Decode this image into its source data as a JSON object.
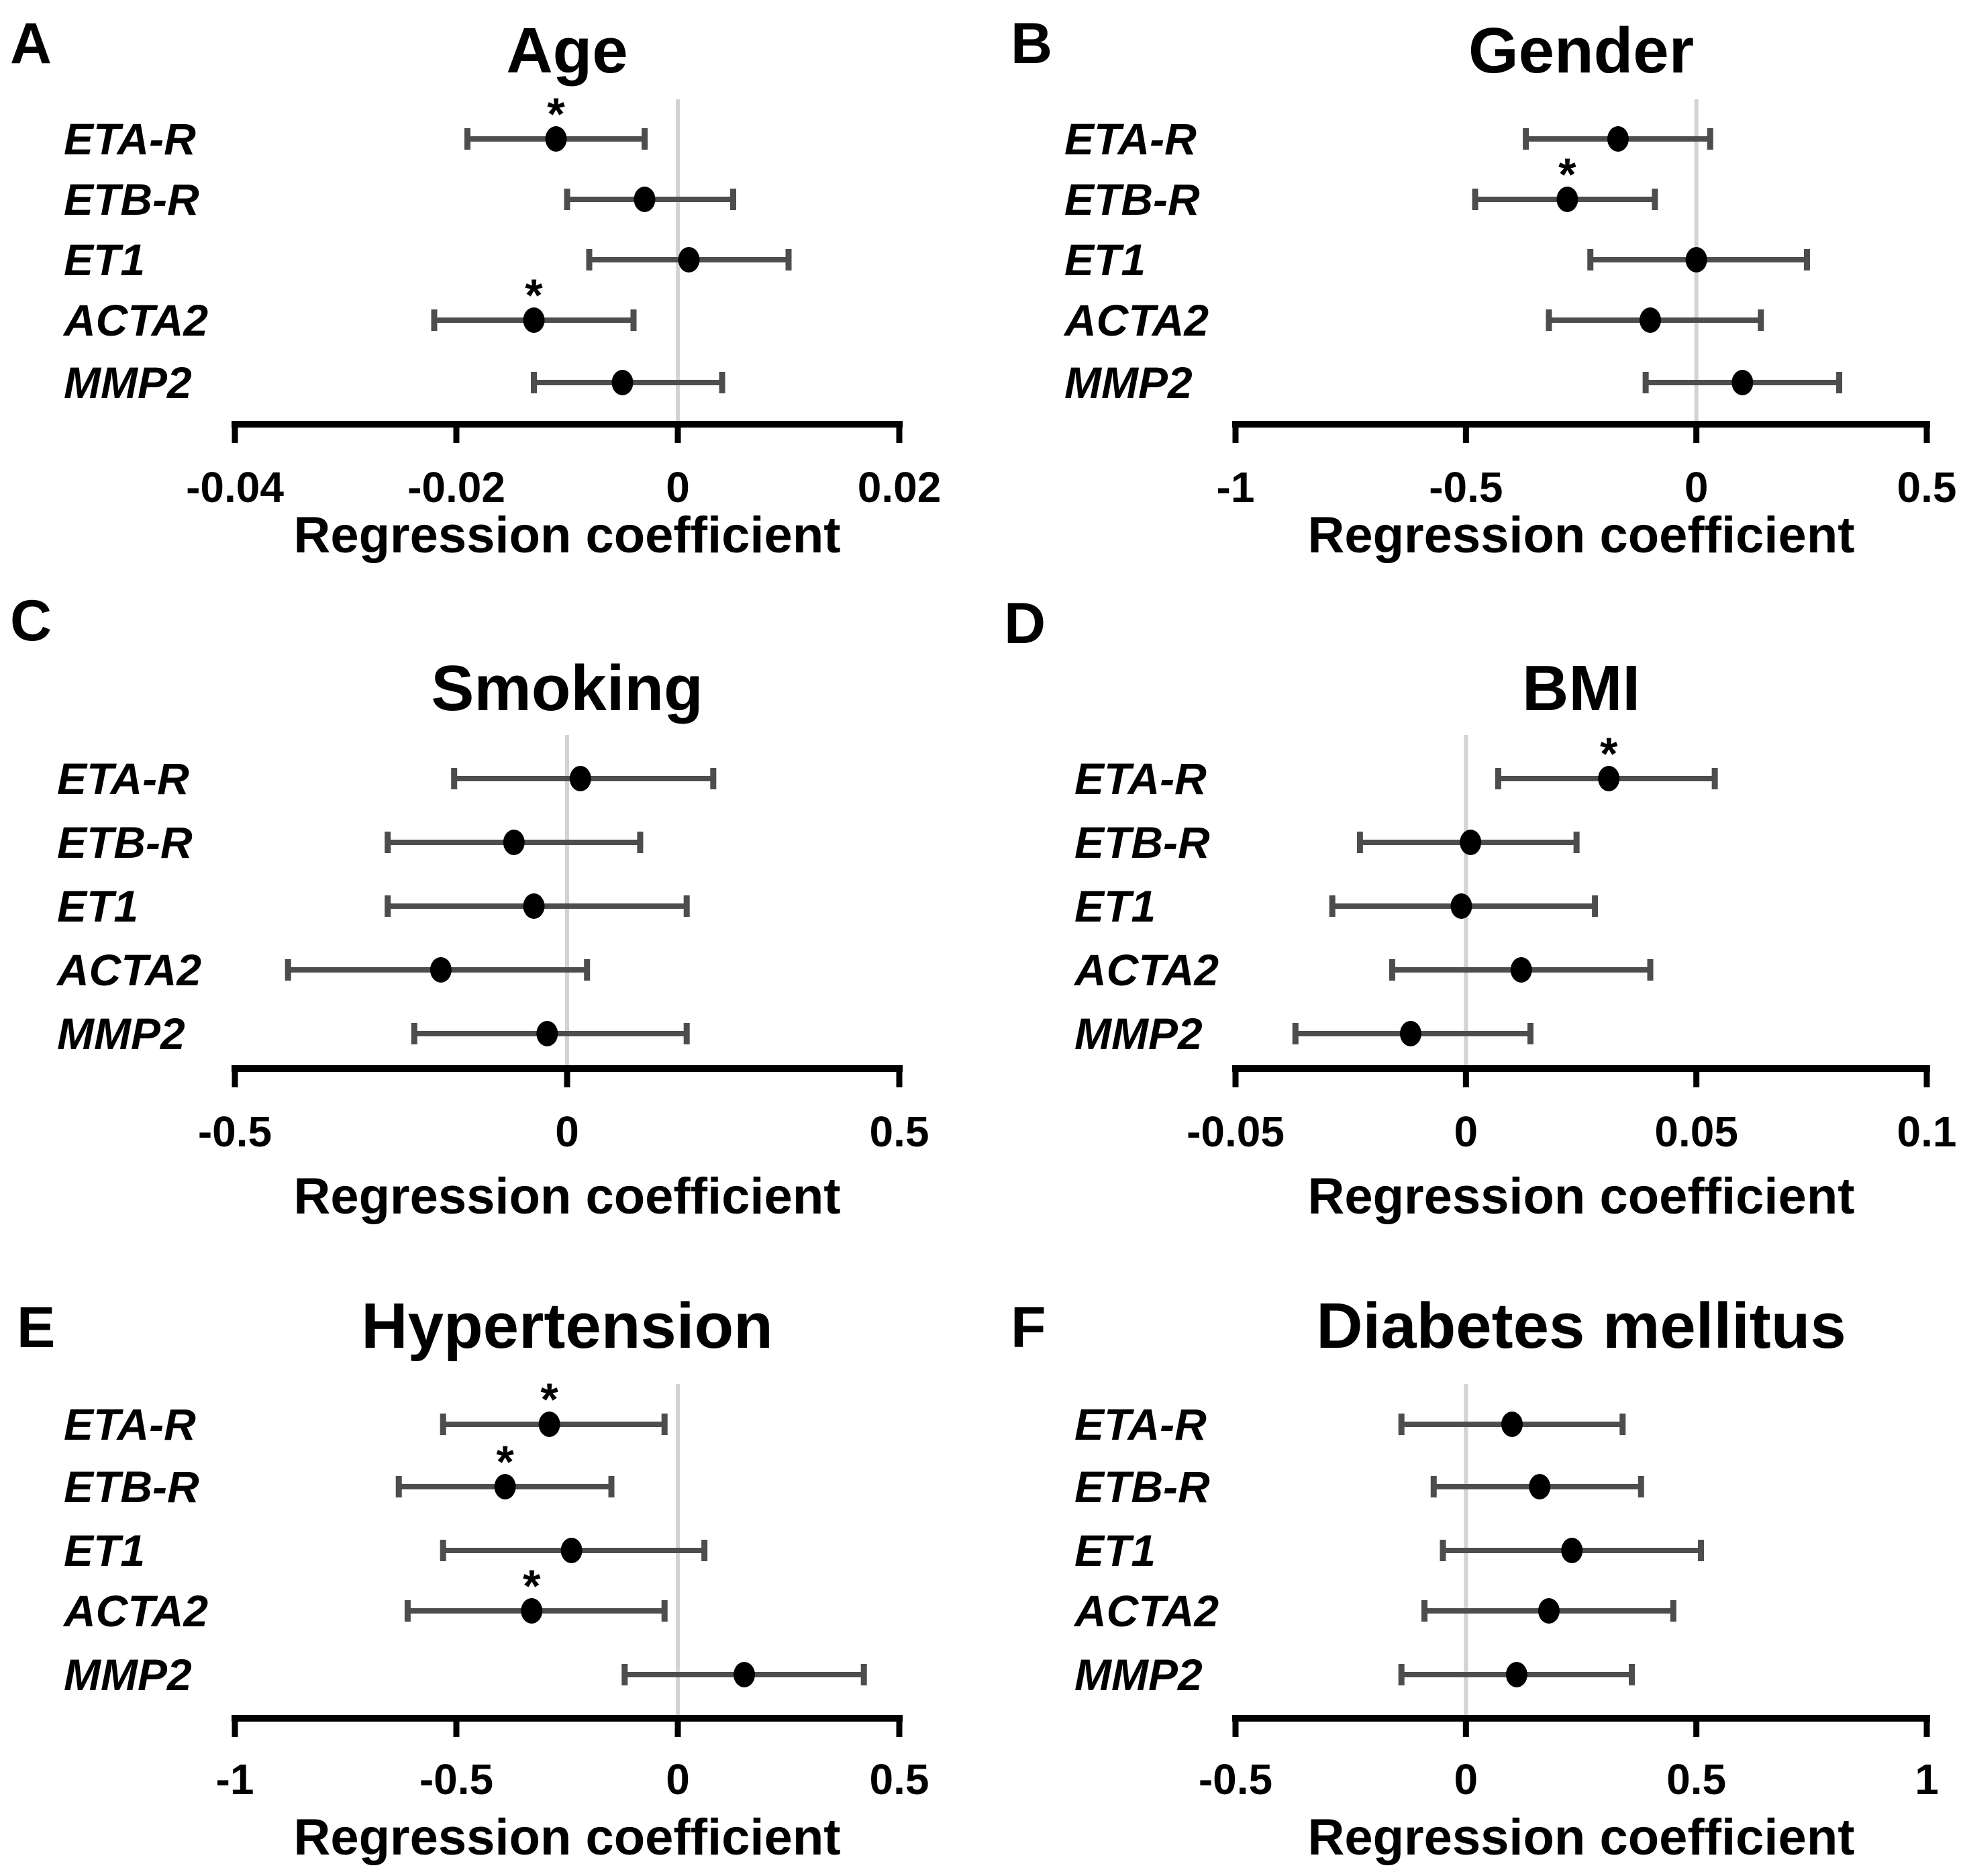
{
  "figure": {
    "genes": [
      "ETA-R",
      "ETB-R",
      "ET1",
      "ACTA2",
      "MMP2"
    ],
    "significance_marker": "*",
    "xlabel": "Regression coefficient"
  },
  "styles": {
    "marker_color": "#000000",
    "ci_color": "#4d4d4d",
    "zero_line_color": "#d3d3d3",
    "axis_color": "#000000",
    "text_color": "#000000"
  },
  "chart_data": [
    {
      "type": "forest",
      "panel_label": "A",
      "title": "Age",
      "xlabel": "Regression coefficient",
      "xlim": [
        -0.04,
        0.02
      ],
      "xticks": [
        -0.04,
        -0.02,
        0,
        0.02
      ],
      "xtick_labels": [
        "-0.04",
        "-0.02",
        "0",
        "0.02"
      ],
      "zero_reference": 0,
      "grid": false,
      "categories": [
        "ETA-R",
        "ETB-R",
        "ET1",
        "ACTA2",
        "MMP2"
      ],
      "points": [
        {
          "gene": "ETA-R",
          "estimate": -0.011,
          "ci_low": -0.019,
          "ci_high": -0.003,
          "significant": true
        },
        {
          "gene": "ETB-R",
          "estimate": -0.003,
          "ci_low": -0.01,
          "ci_high": 0.005,
          "significant": false
        },
        {
          "gene": "ET1",
          "estimate": 0.001,
          "ci_low": -0.008,
          "ci_high": 0.01,
          "significant": false
        },
        {
          "gene": "ACTA2",
          "estimate": -0.013,
          "ci_low": -0.022,
          "ci_high": -0.004,
          "significant": true
        },
        {
          "gene": "MMP2",
          "estimate": -0.005,
          "ci_low": -0.013,
          "ci_high": 0.004,
          "significant": false
        }
      ]
    },
    {
      "type": "forest",
      "panel_label": "B",
      "title": "Gender",
      "xlabel": "Regression coefficient",
      "xlim": [
        -1,
        0.5
      ],
      "xticks": [
        -1,
        -0.5,
        0,
        0.5
      ],
      "xtick_labels": [
        "-1",
        "-0.5",
        "0",
        "0.5"
      ],
      "zero_reference": 0,
      "grid": false,
      "categories": [
        "ETA-R",
        "ETB-R",
        "ET1",
        "ACTA2",
        "MMP2"
      ],
      "points": [
        {
          "gene": "ETA-R",
          "estimate": -0.17,
          "ci_low": -0.37,
          "ci_high": 0.03,
          "significant": false
        },
        {
          "gene": "ETB-R",
          "estimate": -0.28,
          "ci_low": -0.48,
          "ci_high": -0.09,
          "significant": true
        },
        {
          "gene": "ET1",
          "estimate": 0.0,
          "ci_low": -0.23,
          "ci_high": 0.24,
          "significant": false
        },
        {
          "gene": "ACTA2",
          "estimate": -0.1,
          "ci_low": -0.32,
          "ci_high": 0.14,
          "significant": false
        },
        {
          "gene": "MMP2",
          "estimate": 0.1,
          "ci_low": -0.11,
          "ci_high": 0.31,
          "significant": false
        }
      ]
    },
    {
      "type": "forest",
      "panel_label": "C",
      "title": "Smoking",
      "xlabel": "Regression coefficient",
      "xlim": [
        -0.5,
        0.5
      ],
      "xticks": [
        -0.5,
        0,
        0.5
      ],
      "xtick_labels": [
        "-0.5",
        "0",
        "0.5"
      ],
      "zero_reference": 0,
      "grid": false,
      "categories": [
        "ETA-R",
        "ETB-R",
        "ET1",
        "ACTA2",
        "MMP2"
      ],
      "points": [
        {
          "gene": "ETA-R",
          "estimate": 0.02,
          "ci_low": -0.17,
          "ci_high": 0.22,
          "significant": false
        },
        {
          "gene": "ETB-R",
          "estimate": -0.08,
          "ci_low": -0.27,
          "ci_high": 0.11,
          "significant": false
        },
        {
          "gene": "ET1",
          "estimate": -0.05,
          "ci_low": -0.27,
          "ci_high": 0.18,
          "significant": false
        },
        {
          "gene": "ACTA2",
          "estimate": -0.19,
          "ci_low": -0.42,
          "ci_high": 0.03,
          "significant": false
        },
        {
          "gene": "MMP2",
          "estimate": -0.03,
          "ci_low": -0.23,
          "ci_high": 0.18,
          "significant": false
        }
      ]
    },
    {
      "type": "forest",
      "panel_label": "D",
      "title": "BMI",
      "xlabel": "Regression coefficient",
      "xlim": [
        -0.05,
        0.1
      ],
      "xticks": [
        -0.05,
        0,
        0.05,
        0.1
      ],
      "xtick_labels": [
        "-0.05",
        "0",
        "0.05",
        "0.1"
      ],
      "zero_reference": 0,
      "grid": false,
      "categories": [
        "ETA-R",
        "ETB-R",
        "ET1",
        "ACTA2",
        "MMP2"
      ],
      "points": [
        {
          "gene": "ETA-R",
          "estimate": 0.031,
          "ci_low": 0.007,
          "ci_high": 0.054,
          "significant": true
        },
        {
          "gene": "ETB-R",
          "estimate": 0.001,
          "ci_low": -0.023,
          "ci_high": 0.024,
          "significant": false
        },
        {
          "gene": "ET1",
          "estimate": -0.001,
          "ci_low": -0.029,
          "ci_high": 0.028,
          "significant": false
        },
        {
          "gene": "ACTA2",
          "estimate": 0.012,
          "ci_low": -0.016,
          "ci_high": 0.04,
          "significant": false
        },
        {
          "gene": "MMP2",
          "estimate": -0.012,
          "ci_low": -0.037,
          "ci_high": 0.014,
          "significant": false
        }
      ]
    },
    {
      "type": "forest",
      "panel_label": "E",
      "title": "Hypertension",
      "xlabel": "Regression coefficient",
      "xlim": [
        -1,
        0.5
      ],
      "xticks": [
        -1,
        -0.5,
        0,
        0.5
      ],
      "xtick_labels": [
        "-1",
        "-0.5",
        "0",
        "0.5"
      ],
      "zero_reference": 0,
      "grid": false,
      "categories": [
        "ETA-R",
        "ETB-R",
        "ET1",
        "ACTA2",
        "MMP2"
      ],
      "points": [
        {
          "gene": "ETA-R",
          "estimate": -0.29,
          "ci_low": -0.53,
          "ci_high": -0.03,
          "significant": true
        },
        {
          "gene": "ETB-R",
          "estimate": -0.39,
          "ci_low": -0.63,
          "ci_high": -0.15,
          "significant": true
        },
        {
          "gene": "ET1",
          "estimate": -0.24,
          "ci_low": -0.53,
          "ci_high": 0.06,
          "significant": false
        },
        {
          "gene": "ACTA2",
          "estimate": -0.33,
          "ci_low": -0.61,
          "ci_high": -0.03,
          "significant": true
        },
        {
          "gene": "MMP2",
          "estimate": 0.15,
          "ci_low": -0.12,
          "ci_high": 0.42,
          "significant": false
        }
      ]
    },
    {
      "type": "forest",
      "panel_label": "F",
      "title": "Diabetes mellitus",
      "xlabel": "Regression coefficient",
      "xlim": [
        -0.5,
        1
      ],
      "xticks": [
        -0.5,
        0,
        0.5,
        1
      ],
      "xtick_labels": [
        "-0.5",
        "0",
        "0.5",
        "1"
      ],
      "zero_reference": 0,
      "grid": false,
      "categories": [
        "ETA-R",
        "ETB-R",
        "ET1",
        "ACTA2",
        "MMP2"
      ],
      "points": [
        {
          "gene": "ETA-R",
          "estimate": 0.1,
          "ci_low": -0.14,
          "ci_high": 0.34,
          "significant": false
        },
        {
          "gene": "ETB-R",
          "estimate": 0.16,
          "ci_low": -0.07,
          "ci_high": 0.38,
          "significant": false
        },
        {
          "gene": "ET1",
          "estimate": 0.23,
          "ci_low": -0.05,
          "ci_high": 0.51,
          "significant": false
        },
        {
          "gene": "ACTA2",
          "estimate": 0.18,
          "ci_low": -0.09,
          "ci_high": 0.45,
          "significant": false
        },
        {
          "gene": "MMP2",
          "estimate": 0.11,
          "ci_low": -0.14,
          "ci_high": 0.36,
          "significant": false
        }
      ]
    }
  ]
}
